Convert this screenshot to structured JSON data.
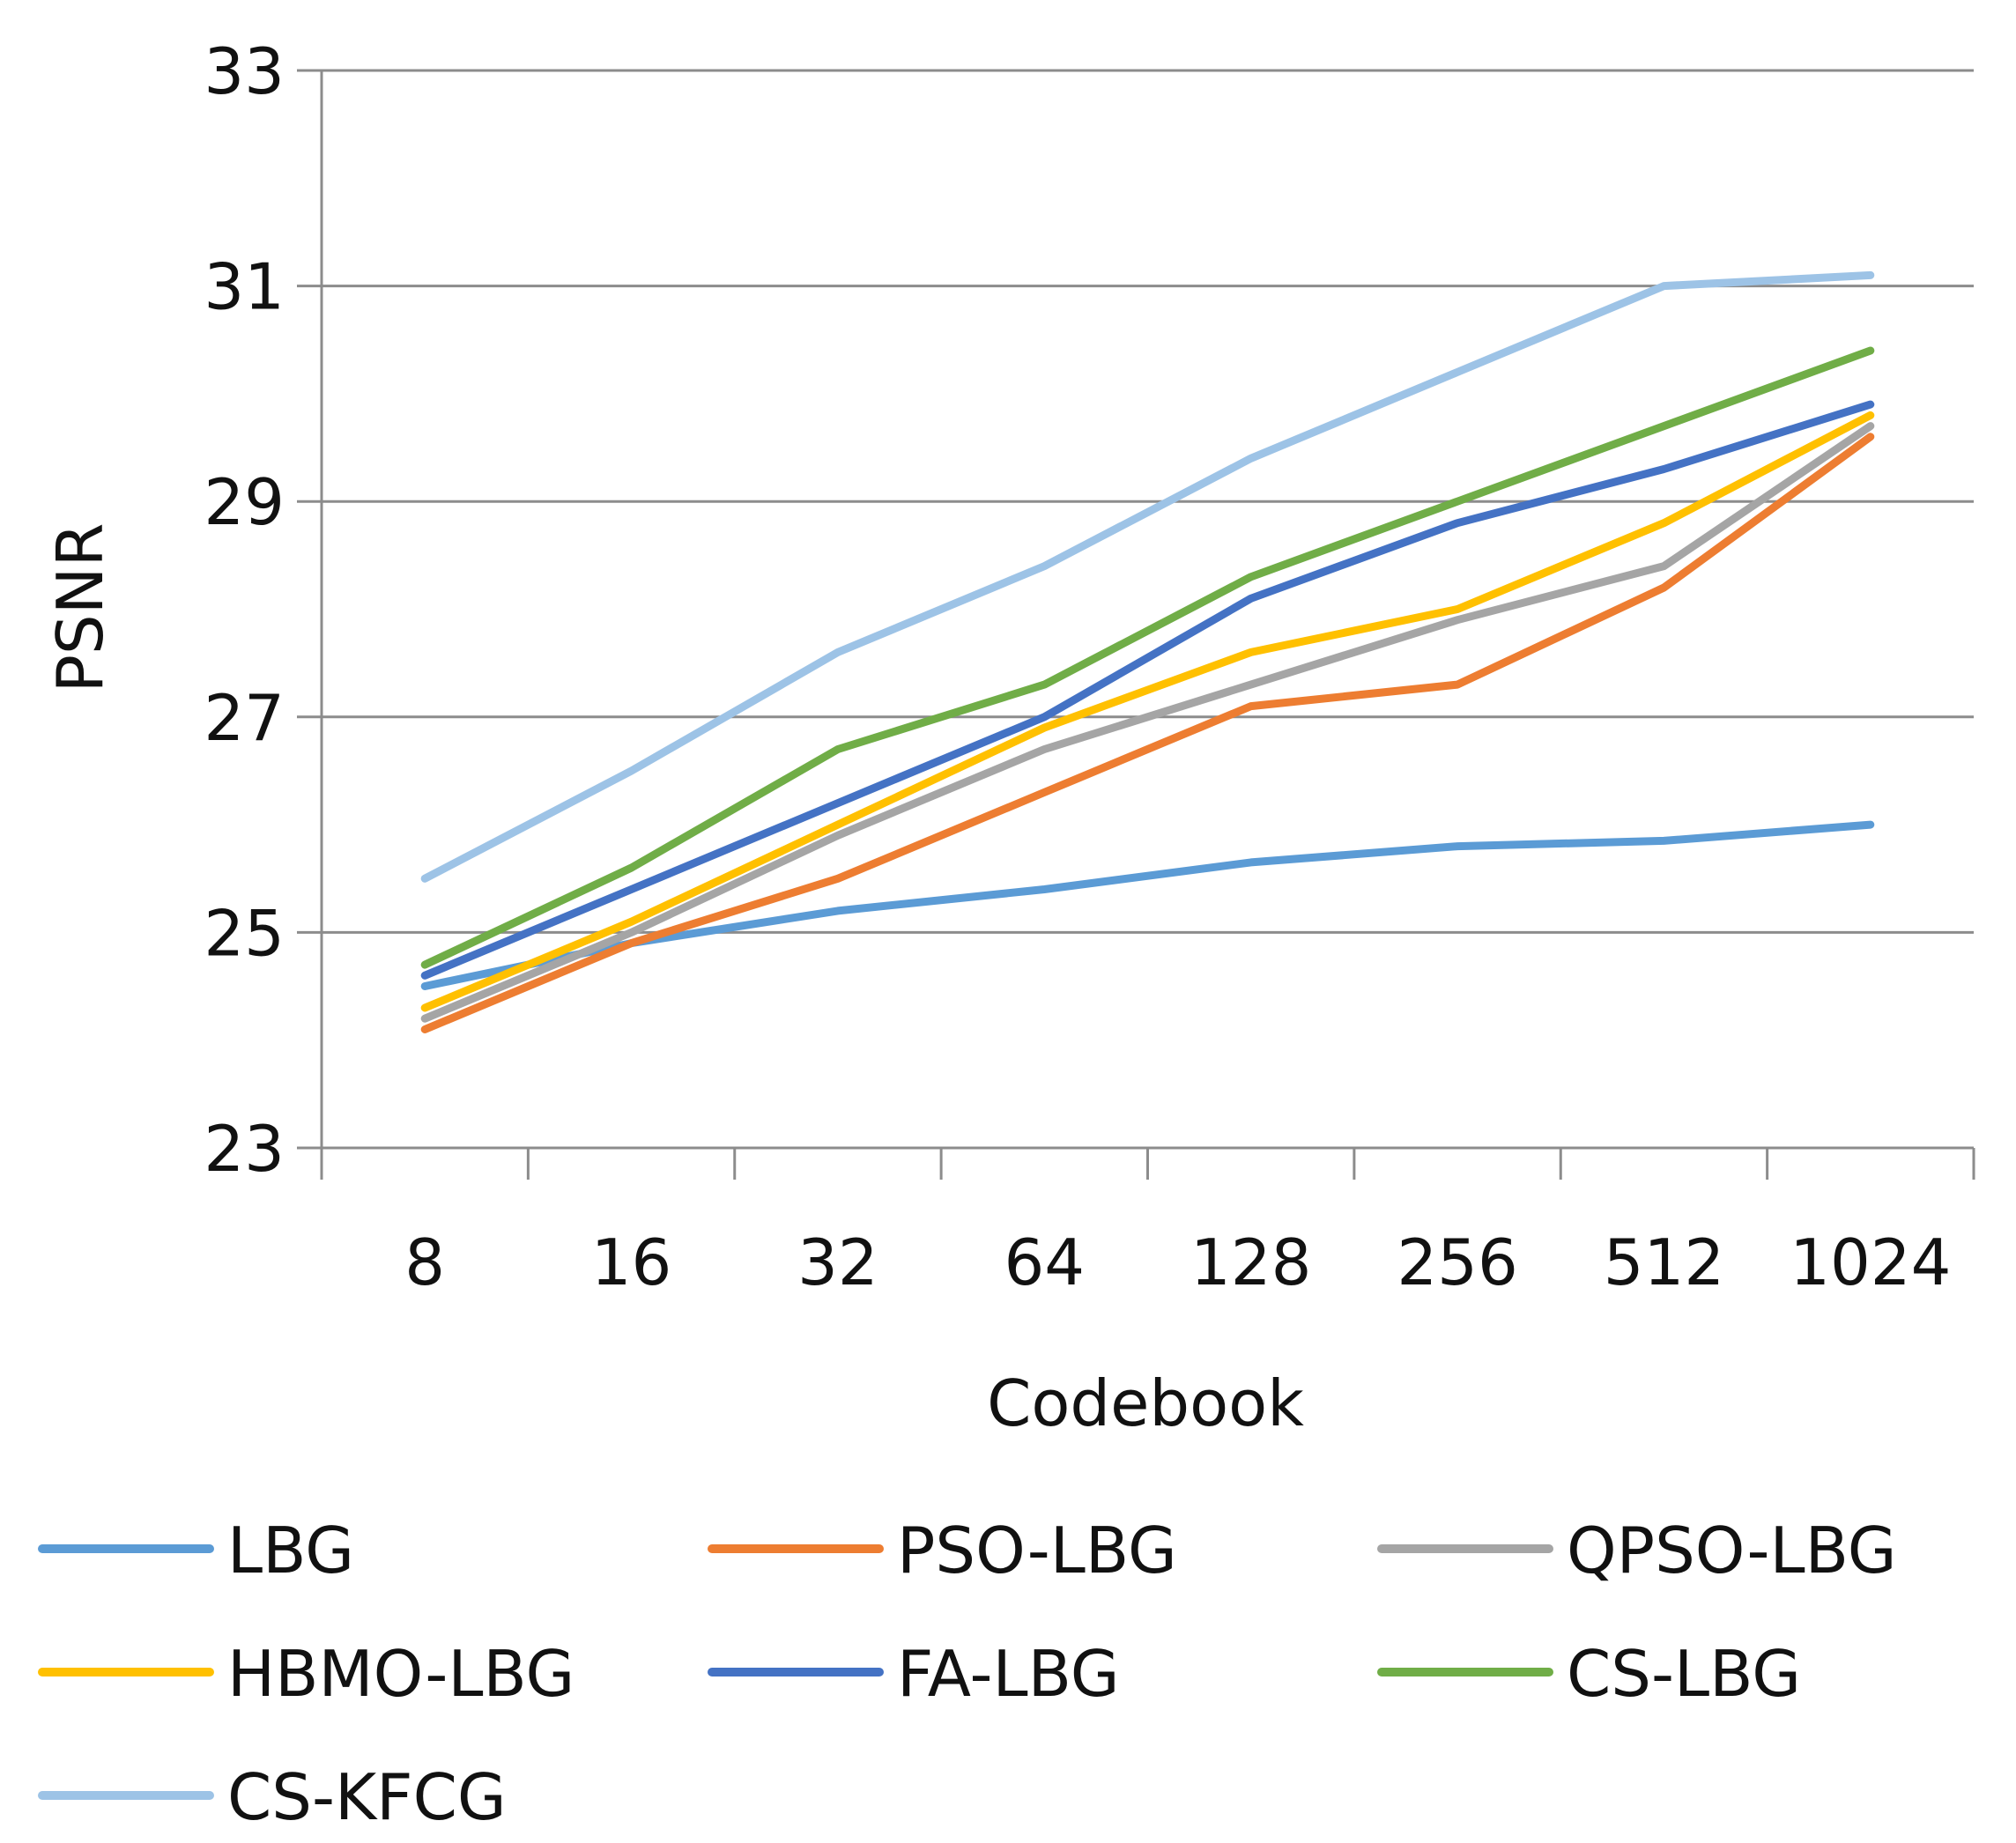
{
  "chart_data": {
    "type": "line",
    "title": "",
    "xlabel": "Codebook",
    "ylabel": "PSNR",
    "categories": [
      "8",
      "16",
      "32",
      "64",
      "128",
      "256",
      "512",
      "1024"
    ],
    "ylim": [
      23,
      33
    ],
    "yticks": [
      23,
      25,
      27,
      29,
      31,
      33
    ],
    "grid": "horizontal",
    "legend_position": "bottom",
    "series": [
      {
        "name": "LBG",
        "color": "#5B9BD5",
        "values": [
          24.5,
          24.9,
          25.2,
          25.4,
          25.65,
          25.8,
          25.85,
          26.0
        ]
      },
      {
        "name": "PSO-LBG",
        "color": "#ED7D31",
        "values": [
          24.1,
          24.9,
          25.5,
          26.3,
          27.1,
          27.3,
          28.2,
          29.6
        ]
      },
      {
        "name": "QPSO-LBG",
        "color": "#A5A5A5",
        "values": [
          24.2,
          25.0,
          25.9,
          26.7,
          27.3,
          27.9,
          28.4,
          29.7
        ]
      },
      {
        "name": "HBMO-LBG",
        "color": "#FFC000",
        "values": [
          24.3,
          25.1,
          26.0,
          26.9,
          27.6,
          28.0,
          28.8,
          29.8
        ]
      },
      {
        "name": "FA-LBG",
        "color": "#4472C4",
        "values": [
          24.6,
          25.4,
          26.2,
          27.0,
          28.1,
          28.8,
          29.3,
          29.9
        ]
      },
      {
        "name": "CS-LBG",
        "color": "#70AD47",
        "values": [
          24.7,
          25.6,
          26.7,
          27.3,
          28.3,
          29.0,
          29.7,
          30.4
        ]
      },
      {
        "name": "CS-KFCG",
        "color": "#9DC3E6",
        "values": [
          25.5,
          26.5,
          27.6,
          28.4,
          29.4,
          30.2,
          31.0,
          31.1
        ]
      }
    ]
  }
}
